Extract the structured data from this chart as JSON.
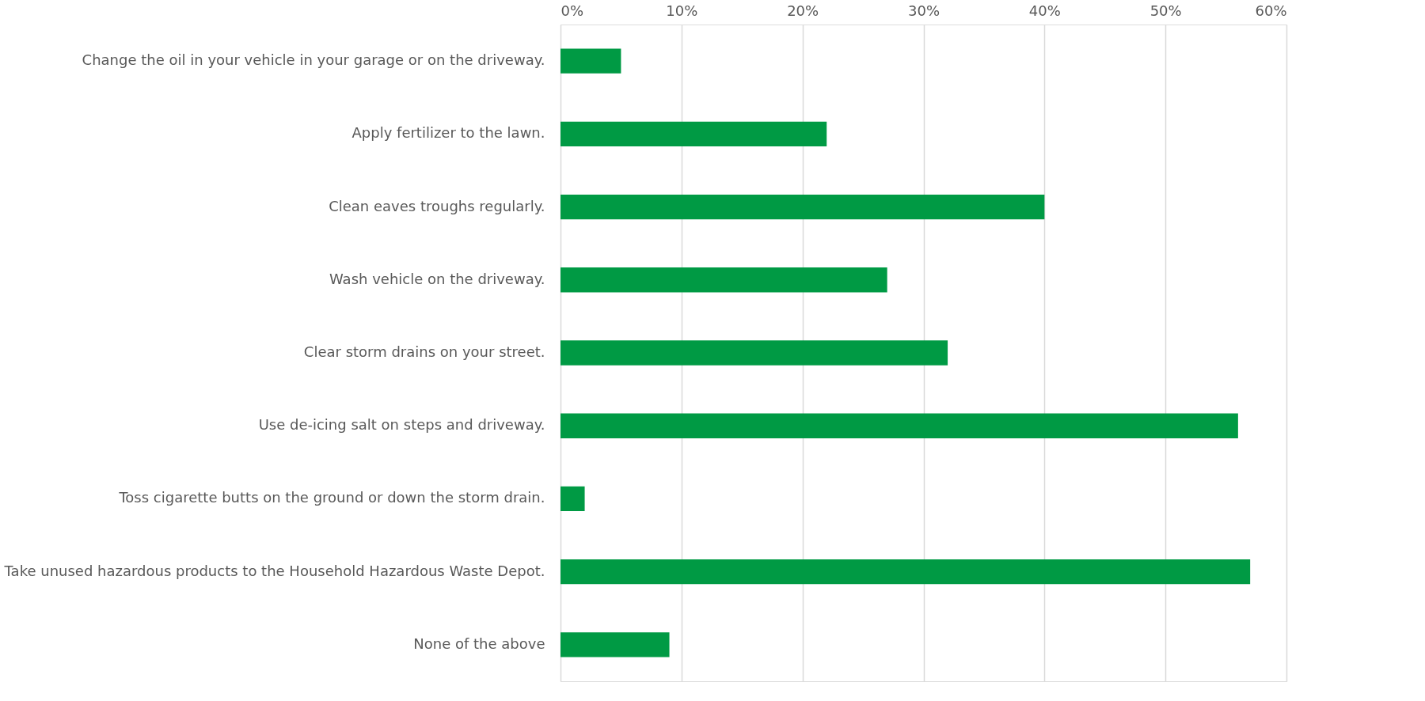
{
  "chart_data": {
    "type": "bar",
    "orientation": "horizontal",
    "categories": [
      "Change the oil in your vehicle in your garage or on the driveway.",
      "Apply fertilizer to the lawn.",
      "Clean eaves troughs regularly.",
      "Wash vehicle on the driveway.",
      "Clear storm drains on your street.",
      "Use de-icing salt on steps and driveway.",
      "Toss cigarette butts on the ground or down the storm drain.",
      "Take unused hazardous products to the Household Hazardous Waste Depot.",
      "None of the above"
    ],
    "values": [
      5,
      22,
      40,
      27,
      32,
      56,
      2,
      57,
      9
    ],
    "color": "#009a44",
    "xlim": [
      0,
      60
    ],
    "xticks": [
      {
        "value": 0,
        "label": "0%"
      },
      {
        "value": 10,
        "label": "10%"
      },
      {
        "value": 20,
        "label": "20%"
      },
      {
        "value": 30,
        "label": "30%"
      },
      {
        "value": 40,
        "label": "40%"
      },
      {
        "value": 50,
        "label": "50%"
      },
      {
        "value": 60,
        "label": "60%"
      }
    ],
    "grid": "x"
  }
}
